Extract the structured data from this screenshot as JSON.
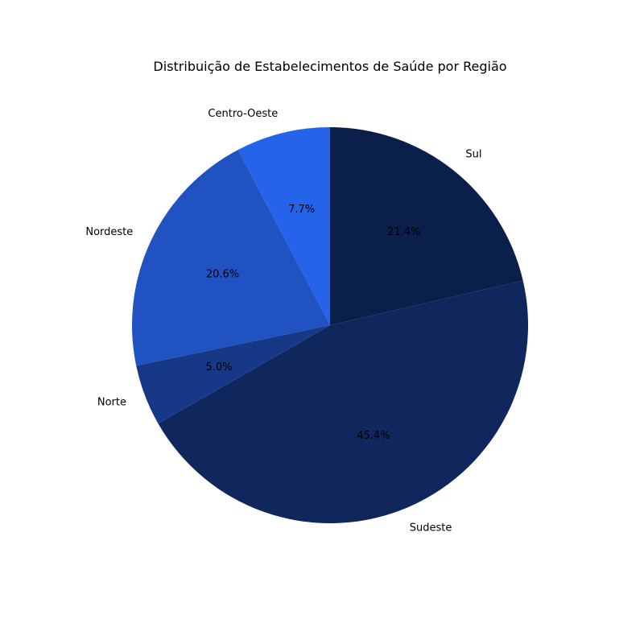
{
  "chart_data": {
    "type": "pie",
    "title": "Distribuição de Estabelecimentos de Saúde por Região",
    "slices": [
      {
        "label": "Sul",
        "value": 21.4,
        "pct_label": "21.4%",
        "color": "#0b1f4b"
      },
      {
        "label": "Sudeste",
        "value": 45.4,
        "pct_label": "45.4%",
        "color": "#10275e"
      },
      {
        "label": "Norte",
        "value": 5.0,
        "pct_label": "5.0%",
        "color": "#173887"
      },
      {
        "label": "Nordeste",
        "value": 20.6,
        "pct_label": "20.6%",
        "color": "#2152c1"
      },
      {
        "label": "Centro-Oeste",
        "value": 7.7,
        "pct_label": "7.7%",
        "color": "#2563eb"
      }
    ],
    "start_angle_deg": 90,
    "direction": "clockwise",
    "legend": "none"
  }
}
